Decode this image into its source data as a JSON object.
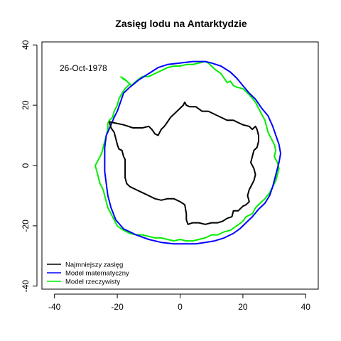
{
  "chart_data": {
    "type": "line",
    "title": "Zasięg lodu na Antarktydzie",
    "xlabel": "",
    "ylabel": "",
    "xlim": [
      -44,
      44
    ],
    "ylim": [
      -41,
      41
    ],
    "xticks": [
      -40,
      -20,
      0,
      20,
      40
    ],
    "yticks": [
      -40,
      -20,
      0,
      20,
      40
    ],
    "xtick_labels": [
      "-40",
      "-20",
      "0",
      "20",
      "40"
    ],
    "ytick_labels": [
      "-40",
      "-20",
      "0",
      "20",
      "40"
    ],
    "grid": false,
    "legend_position": "bottom-left",
    "annotation": "26-Oct-1978",
    "series": [
      {
        "name": "Najmniejszy zasięg",
        "color": "#000000",
        "closed": true,
        "points": [
          [
            -22.5,
            14.5
          ],
          [
            -18,
            13.5
          ],
          [
            -15,
            12.5
          ],
          [
            -12,
            12.5
          ],
          [
            -10,
            13
          ],
          [
            -9,
            12
          ],
          [
            -8,
            10.5
          ],
          [
            -7,
            10
          ],
          [
            -6,
            12
          ],
          [
            -5,
            13
          ],
          [
            -4,
            14.5
          ],
          [
            -3,
            16
          ],
          [
            -1,
            18
          ],
          [
            0,
            19
          ],
          [
            1,
            20
          ],
          [
            1.5,
            21
          ],
          [
            2,
            20
          ],
          [
            3,
            19.5
          ],
          [
            5,
            19.5
          ],
          [
            7,
            18
          ],
          [
            9,
            18
          ],
          [
            11,
            17
          ],
          [
            13,
            16
          ],
          [
            15,
            15
          ],
          [
            17,
            15
          ],
          [
            19,
            14
          ],
          [
            20,
            13.5
          ],
          [
            22,
            13
          ],
          [
            23,
            12
          ],
          [
            24,
            13
          ],
          [
            24.5,
            12
          ],
          [
            25,
            10
          ],
          [
            25,
            8
          ],
          [
            24.5,
            6
          ],
          [
            23.5,
            5
          ],
          [
            23,
            3
          ],
          [
            22.5,
            1
          ],
          [
            23.5,
            -1
          ],
          [
            24,
            -3
          ],
          [
            23.5,
            -5
          ],
          [
            23,
            -6
          ],
          [
            22,
            -8
          ],
          [
            21.5,
            -10
          ],
          [
            22,
            -12
          ],
          [
            21,
            -13
          ],
          [
            20,
            -13.5
          ],
          [
            18.5,
            -15
          ],
          [
            17,
            -15
          ],
          [
            16.5,
            -17
          ],
          [
            15,
            -17.5
          ],
          [
            13.5,
            -18.5
          ],
          [
            12,
            -19
          ],
          [
            10,
            -19
          ],
          [
            8,
            -19.5
          ],
          [
            6,
            -19
          ],
          [
            4,
            -19
          ],
          [
            2.5,
            -19.5
          ],
          [
            2,
            -18
          ],
          [
            2,
            -16
          ],
          [
            1.5,
            -13
          ],
          [
            0,
            -12
          ],
          [
            -2,
            -11
          ],
          [
            -4,
            -11
          ],
          [
            -6,
            -11.5
          ],
          [
            -8,
            -11
          ],
          [
            -10,
            -10
          ],
          [
            -12,
            -9
          ],
          [
            -14,
            -8
          ],
          [
            -16,
            -7
          ],
          [
            -17,
            -6
          ],
          [
            -17.5,
            -4
          ],
          [
            -17.5,
            -2
          ],
          [
            -17.5,
            0
          ],
          [
            -17.5,
            2
          ],
          [
            -18,
            3
          ],
          [
            -18.5,
            5
          ],
          [
            -19.5,
            5.5
          ],
          [
            -20,
            7
          ],
          [
            -20.5,
            9
          ],
          [
            -21,
            11
          ],
          [
            -22,
            12.5
          ]
        ]
      },
      {
        "name": "Model matematyczny",
        "color": "#0000ff",
        "closed": true,
        "points": [
          [
            -21,
            16
          ],
          [
            -20,
            18
          ],
          [
            -19,
            21
          ],
          [
            -18,
            24
          ],
          [
            -16,
            26
          ],
          [
            -13,
            28.5
          ],
          [
            -10,
            30.5
          ],
          [
            -7,
            32.5
          ],
          [
            -4,
            33.5
          ],
          [
            0,
            34
          ],
          [
            4,
            34.5
          ],
          [
            8,
            34.5
          ],
          [
            10,
            34
          ],
          [
            13,
            33
          ],
          [
            16,
            31
          ],
          [
            18,
            29
          ],
          [
            20,
            26.5
          ],
          [
            22,
            24
          ],
          [
            24,
            22
          ],
          [
            26,
            19
          ],
          [
            28,
            16.5
          ],
          [
            29.5,
            13
          ],
          [
            30.5,
            10
          ],
          [
            31.5,
            7
          ],
          [
            32,
            4
          ],
          [
            31.5,
            1
          ],
          [
            30.5,
            -3
          ],
          [
            29.5,
            -7
          ],
          [
            28.5,
            -10
          ],
          [
            27,
            -12.5
          ],
          [
            25,
            -14.5
          ],
          [
            23,
            -17
          ],
          [
            21,
            -19
          ],
          [
            19,
            -21
          ],
          [
            17,
            -22.5
          ],
          [
            14,
            -24
          ],
          [
            11,
            -25
          ],
          [
            8,
            -25.5
          ],
          [
            5,
            -26
          ],
          [
            2,
            -26
          ],
          [
            -2,
            -26
          ],
          [
            -6,
            -25.5
          ],
          [
            -10,
            -24.5
          ],
          [
            -14,
            -23
          ],
          [
            -18,
            -21
          ],
          [
            -20.5,
            -18
          ],
          [
            -22,
            -14
          ],
          [
            -23,
            -10
          ],
          [
            -23.5,
            -6
          ],
          [
            -24,
            -2
          ],
          [
            -24,
            2
          ],
          [
            -24,
            6
          ],
          [
            -23.5,
            10
          ],
          [
            -22,
            13.5
          ]
        ]
      },
      {
        "name": "Model rzeczywisty",
        "color": "#00ee00",
        "closed": false,
        "points": [
          [
            -18.5,
            29
          ],
          [
            -17,
            28
          ],
          [
            -15.5,
            26.5
          ],
          [
            -14,
            28
          ],
          [
            -12,
            29.5
          ],
          [
            -10,
            29.5
          ],
          [
            -8,
            30.5
          ],
          [
            -6,
            31.5
          ],
          [
            -4,
            32.5
          ],
          [
            -2,
            33
          ],
          [
            0,
            33
          ],
          [
            2,
            33.5
          ],
          [
            4,
            33.5
          ],
          [
            6,
            34
          ],
          [
            8,
            34.5
          ],
          [
            9,
            34
          ],
          [
            10,
            33
          ],
          [
            11,
            32
          ],
          [
            13,
            30.5
          ],
          [
            14,
            29
          ],
          [
            15,
            27.5
          ],
          [
            16,
            28
          ],
          [
            17,
            26.5
          ],
          [
            18,
            26
          ],
          [
            20,
            25.5
          ],
          [
            22,
            23.5
          ],
          [
            24,
            21
          ],
          [
            25,
            19
          ],
          [
            26,
            17
          ],
          [
            27,
            15
          ],
          [
            27.5,
            13
          ],
          [
            28,
            11
          ],
          [
            29,
            9
          ],
          [
            30,
            7
          ],
          [
            30.5,
            5
          ],
          [
            30,
            3
          ],
          [
            31,
            1
          ],
          [
            31.5,
            -1
          ],
          [
            31,
            -3
          ],
          [
            30.5,
            -5
          ],
          [
            29.5,
            -7
          ],
          [
            28.5,
            -9
          ],
          [
            27,
            -11
          ],
          [
            26,
            -12
          ],
          [
            24,
            -14
          ],
          [
            23,
            -16
          ],
          [
            21,
            -17
          ],
          [
            20,
            -18.5
          ],
          [
            18,
            -20
          ],
          [
            16,
            -21.5
          ],
          [
            14,
            -22
          ],
          [
            12,
            -23
          ],
          [
            10,
            -23
          ],
          [
            8,
            -24
          ],
          [
            6,
            -24.5
          ],
          [
            4,
            -25
          ],
          [
            2,
            -25
          ],
          [
            0,
            -24.5
          ],
          [
            -2,
            -25
          ],
          [
            -4,
            -24.5
          ],
          [
            -6,
            -24
          ],
          [
            -8,
            -24
          ],
          [
            -10,
            -23.5
          ],
          [
            -12,
            -23
          ],
          [
            -14,
            -23
          ],
          [
            -16,
            -22.5
          ],
          [
            -18,
            -21.5
          ],
          [
            -20,
            -20
          ],
          [
            -21,
            -18
          ],
          [
            -22,
            -16
          ],
          [
            -23,
            -14
          ],
          [
            -23.5,
            -12
          ],
          [
            -24,
            -10
          ],
          [
            -24.5,
            -8
          ],
          [
            -25.5,
            -6
          ],
          [
            -26,
            -4
          ],
          [
            -26.5,
            -2
          ],
          [
            -27,
            0
          ],
          [
            -26,
            2
          ],
          [
            -25,
            4
          ],
          [
            -24.5,
            6
          ],
          [
            -24,
            8
          ],
          [
            -23.5,
            10
          ],
          [
            -23,
            12
          ],
          [
            -23,
            14
          ],
          [
            -22.5,
            15
          ],
          [
            -21.5,
            16
          ],
          [
            -21,
            18
          ],
          [
            -20,
            20
          ],
          [
            -19.5,
            22
          ],
          [
            -18.5,
            24
          ],
          [
            -17.5,
            25.5
          ],
          [
            -16,
            27
          ],
          [
            -17.5,
            28.5
          ],
          [
            -19,
            29.5
          ]
        ]
      }
    ]
  }
}
